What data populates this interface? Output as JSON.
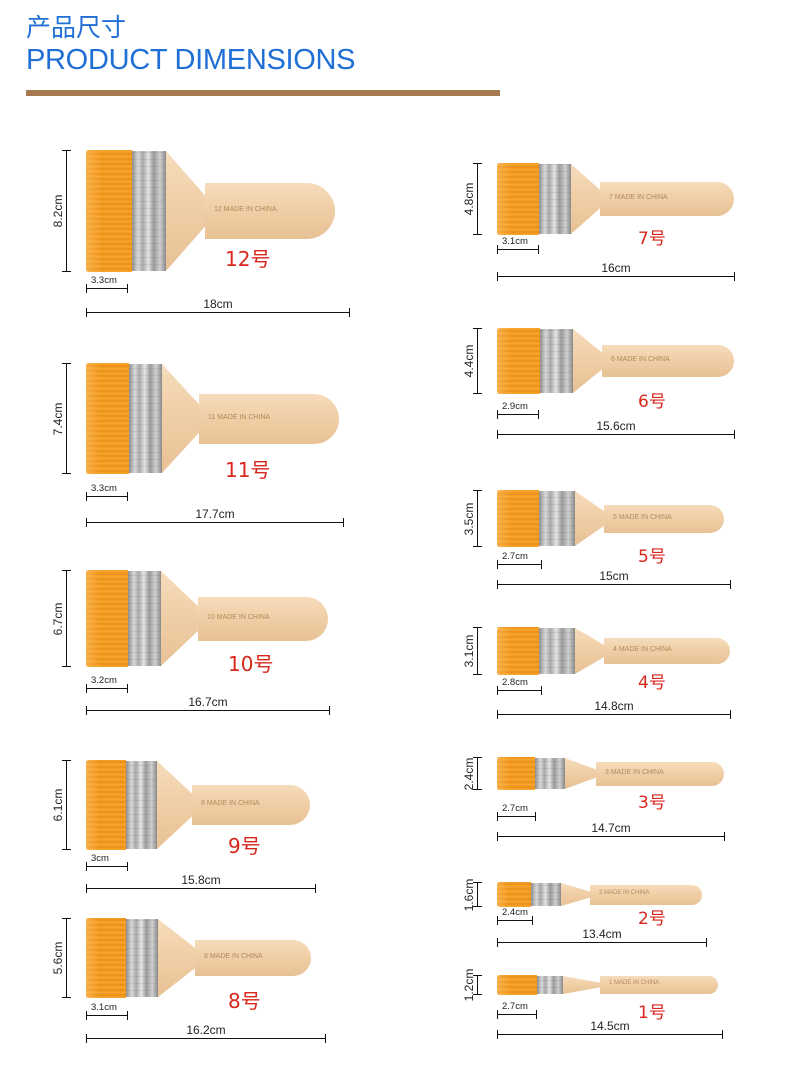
{
  "header": {
    "title_zh": "产品尺寸",
    "title_en": "PRODUCT DIMENSIONS"
  },
  "stamp_text": "MADE IN CHINA",
  "colors": {
    "title_blue": "#1f6fd6",
    "underline_brown": "#a57a53",
    "label_red": "#d9261c",
    "bristle_orange": "#f39a1e",
    "handle_wood": "#f0cfa7"
  },
  "brushes": [
    {
      "num": "12",
      "label": "12号",
      "height": "8.2cm",
      "width": "3.3cm",
      "length": "18cm"
    },
    {
      "num": "11",
      "label": "11号",
      "height": "7.4cm",
      "width": "3.3cm",
      "length": "17.7cm"
    },
    {
      "num": "10",
      "label": "10号",
      "height": "6.7cm",
      "width": "3.2cm",
      "length": "16.7cm"
    },
    {
      "num": "9",
      "label": "9号",
      "height": "6.1cm",
      "width": "3cm",
      "length": "15.8cm"
    },
    {
      "num": "8",
      "label": "8号",
      "height": "5.6cm",
      "width": "3.1cm",
      "length": "16.2cm"
    },
    {
      "num": "7",
      "label": "7号",
      "height": "4.8cm",
      "width": "3.1cm",
      "length": "16cm"
    },
    {
      "num": "6",
      "label": "6号",
      "height": "4.4cm",
      "width": "2.9cm",
      "length": "15.6cm"
    },
    {
      "num": "5",
      "label": "5号",
      "height": "3.5cm",
      "width": "2.7cm",
      "length": "15cm"
    },
    {
      "num": "4",
      "label": "4号",
      "height": "3.1cm",
      "width": "2.8cm",
      "length": "14.8cm"
    },
    {
      "num": "3",
      "label": "3号",
      "height": "2.4cm",
      "width": "2.7cm",
      "length": "14.7cm"
    },
    {
      "num": "2",
      "label": "2号",
      "height": "1.6cm",
      "width": "2.4cm",
      "length": "13.4cm"
    },
    {
      "num": "1",
      "label": "1号",
      "height": "1.2cm",
      "width": "2.7cm",
      "length": "14.5cm"
    }
  ]
}
